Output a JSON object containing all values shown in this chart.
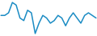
{
  "x": [
    0,
    1,
    2,
    3,
    4,
    5,
    6,
    7,
    8,
    9,
    10,
    11,
    12,
    13,
    14,
    15,
    16,
    17,
    18,
    19,
    20,
    21,
    22,
    23,
    24,
    25
  ],
  "y": [
    1,
    1,
    2,
    6,
    5,
    0,
    -1,
    3,
    2,
    -6,
    -2,
    1,
    0,
    -2,
    -1,
    1,
    0,
    -3,
    0,
    2,
    0,
    -2,
    1,
    2,
    1,
    0
  ],
  "line_color": "#1b8cc4",
  "linewidth": 1.1,
  "background_color": "#ffffff"
}
